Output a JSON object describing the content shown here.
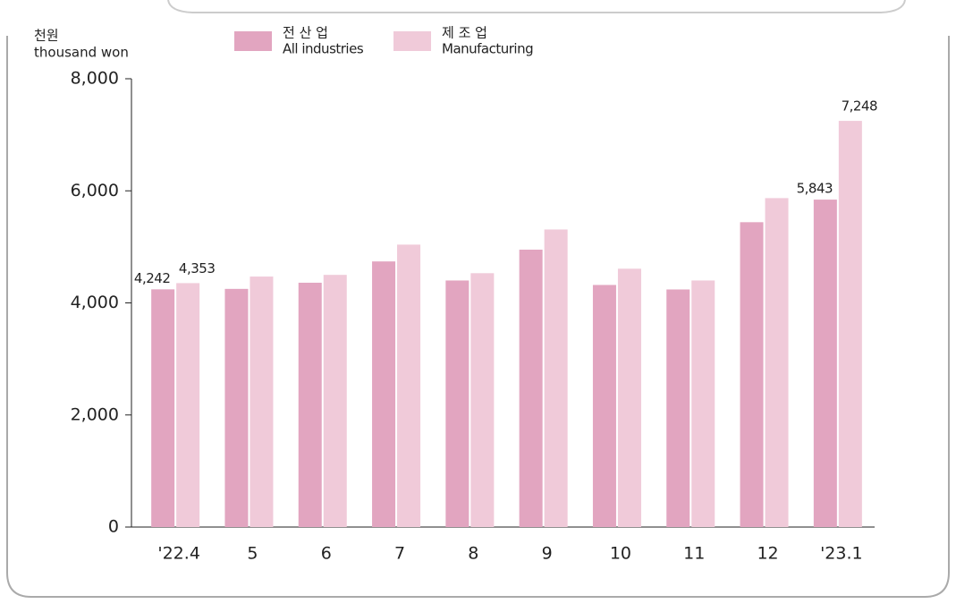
{
  "chart_data": {
    "type": "bar",
    "ylabel_ko": "천원",
    "ylabel": "thousand won",
    "categories": [
      "'22.4",
      "5",
      "6",
      "7",
      "8",
      "9",
      "10",
      "11",
      "12",
      "'23.1"
    ],
    "series": [
      {
        "name": "전 산 업",
        "name_en": "All industries",
        "color": "#e2a5c0",
        "values": [
          4242,
          4250,
          4360,
          4740,
          4400,
          4950,
          4320,
          4240,
          5440,
          5843
        ],
        "value_labels": [
          "4,242",
          null,
          null,
          null,
          null,
          null,
          null,
          null,
          null,
          "5,843"
        ]
      },
      {
        "name": "제 조 업",
        "name_en": "Manufacturing",
        "color": "#f0cad9",
        "values": [
          4353,
          4470,
          4500,
          5040,
          4530,
          5310,
          4610,
          4400,
          5870,
          7248
        ],
        "value_labels": [
          "4,353",
          null,
          null,
          null,
          null,
          null,
          null,
          null,
          null,
          "7,248"
        ]
      }
    ],
    "ylim": [
      0,
      8000
    ],
    "yticks": [
      0,
      {
        "value": 2000,
        "label": "2,000"
      },
      {
        "value": 4000,
        "label": "4,000"
      },
      {
        "value": 6000,
        "label": "6,000"
      },
      {
        "value": 8000,
        "label": "8,000"
      }
    ],
    "grid": false
  }
}
